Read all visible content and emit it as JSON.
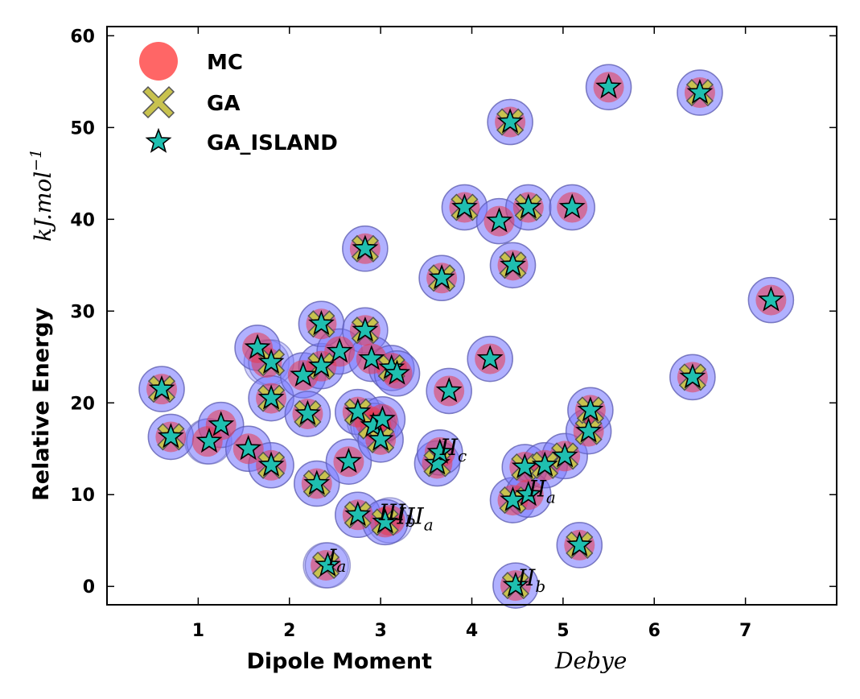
{
  "chart_data": {
    "type": "scatter",
    "xlabel": "Dipole Moment",
    "xunit": "Debye",
    "ylabel": "Relative Energy",
    "yunit": "kJ.mol",
    "yunit_sup": "−1",
    "xlim": [
      0,
      8
    ],
    "ylim": [
      -2,
      61
    ],
    "xticks": [
      1,
      2,
      3,
      4,
      5,
      6,
      7
    ],
    "yticks": [
      0,
      10,
      20,
      30,
      40,
      50,
      60
    ],
    "legend_position": "top-left",
    "colors": {
      "mc": "#e8384f",
      "ga": "#c8c24e",
      "ga_island": "#1fbfb0",
      "halo": "#8080ff"
    },
    "series": [
      {
        "name": "MC",
        "marker": "circle",
        "points": [
          [
            0.6,
            21.5
          ],
          [
            0.7,
            16.3
          ],
          [
            1.1,
            15.8
          ],
          [
            1.25,
            17.6
          ],
          [
            1.55,
            15.0
          ],
          [
            1.65,
            26.0
          ],
          [
            1.75,
            24.4
          ],
          [
            1.8,
            20.5
          ],
          [
            1.8,
            13.2
          ],
          [
            2.15,
            23.0
          ],
          [
            2.2,
            18.8
          ],
          [
            2.3,
            11.2
          ],
          [
            2.35,
            24.0
          ],
          [
            2.35,
            28.6
          ],
          [
            2.4,
            2.3
          ],
          [
            2.55,
            25.6
          ],
          [
            2.65,
            13.6
          ],
          [
            2.75,
            7.8
          ],
          [
            2.75,
            19.0
          ],
          [
            2.83,
            36.8
          ],
          [
            2.83,
            27.9
          ],
          [
            2.88,
            18.0
          ],
          [
            2.9,
            24.8
          ],
          [
            2.95,
            17.5
          ],
          [
            3.0,
            16.0
          ],
          [
            3.02,
            18.2
          ],
          [
            3.05,
            7.0
          ],
          [
            3.1,
            7.2
          ],
          [
            3.12,
            23.8
          ],
          [
            3.18,
            23.2
          ],
          [
            3.62,
            13.4
          ],
          [
            3.65,
            14.6
          ],
          [
            3.67,
            33.6
          ],
          [
            3.75,
            21.3
          ],
          [
            3.92,
            41.3
          ],
          [
            4.2,
            24.8
          ],
          [
            4.3,
            39.8
          ],
          [
            4.42,
            50.6
          ],
          [
            4.45,
            9.4
          ],
          [
            4.45,
            35.0
          ],
          [
            4.48,
            0.1
          ],
          [
            4.58,
            13.0
          ],
          [
            4.62,
            41.3
          ],
          [
            4.62,
            10.0
          ],
          [
            4.8,
            13.2
          ],
          [
            5.02,
            14.2
          ],
          [
            5.1,
            41.3
          ],
          [
            5.18,
            4.5
          ],
          [
            5.28,
            16.9
          ],
          [
            5.3,
            19.2
          ],
          [
            5.5,
            54.4
          ],
          [
            6.42,
            22.8
          ],
          [
            6.5,
            53.8
          ],
          [
            7.28,
            31.2
          ]
        ]
      },
      {
        "name": "GA",
        "marker": "x",
        "points": [
          [
            0.6,
            21.5
          ],
          [
            0.7,
            16.3
          ],
          [
            1.8,
            24.4
          ],
          [
            1.8,
            20.5
          ],
          [
            1.8,
            13.2
          ],
          [
            2.2,
            18.8
          ],
          [
            2.3,
            11.2
          ],
          [
            2.35,
            24.0
          ],
          [
            2.35,
            28.6
          ],
          [
            2.4,
            2.3
          ],
          [
            2.75,
            7.8
          ],
          [
            2.75,
            19.0
          ],
          [
            2.83,
            36.8
          ],
          [
            2.83,
            27.9
          ],
          [
            2.9,
            17.5
          ],
          [
            3.0,
            16.0
          ],
          [
            3.05,
            7.0
          ],
          [
            3.12,
            23.8
          ],
          [
            3.62,
            13.4
          ],
          [
            3.67,
            33.6
          ],
          [
            3.92,
            41.3
          ],
          [
            4.42,
            50.6
          ],
          [
            4.45,
            9.4
          ],
          [
            4.45,
            35.0
          ],
          [
            4.48,
            0.1
          ],
          [
            4.58,
            13.0
          ],
          [
            4.62,
            41.3
          ],
          [
            4.8,
            13.2
          ],
          [
            5.02,
            14.2
          ],
          [
            5.18,
            4.5
          ],
          [
            5.28,
            16.9
          ],
          [
            5.3,
            19.2
          ],
          [
            6.42,
            22.8
          ],
          [
            6.5,
            53.8
          ]
        ]
      },
      {
        "name": "GA_ISLAND",
        "marker": "star",
        "points": [
          [
            0.6,
            21.5
          ],
          [
            0.7,
            16.3
          ],
          [
            1.12,
            15.8
          ],
          [
            1.25,
            17.6
          ],
          [
            1.55,
            15.0
          ],
          [
            1.65,
            26.0
          ],
          [
            1.8,
            24.4
          ],
          [
            1.8,
            20.5
          ],
          [
            1.8,
            13.2
          ],
          [
            2.15,
            23.0
          ],
          [
            2.2,
            18.8
          ],
          [
            2.3,
            11.2
          ],
          [
            2.35,
            24.0
          ],
          [
            2.35,
            28.6
          ],
          [
            2.42,
            2.3
          ],
          [
            2.55,
            25.6
          ],
          [
            2.65,
            13.6
          ],
          [
            2.75,
            7.8
          ],
          [
            2.75,
            19.0
          ],
          [
            2.83,
            36.8
          ],
          [
            2.83,
            27.9
          ],
          [
            2.9,
            24.8
          ],
          [
            2.92,
            17.5
          ],
          [
            3.0,
            16.0
          ],
          [
            3.02,
            18.2
          ],
          [
            3.05,
            7.0
          ],
          [
            3.12,
            23.8
          ],
          [
            3.18,
            23.2
          ],
          [
            3.62,
            13.4
          ],
          [
            3.65,
            14.6
          ],
          [
            3.67,
            33.6
          ],
          [
            3.75,
            21.3
          ],
          [
            3.92,
            41.3
          ],
          [
            4.2,
            24.8
          ],
          [
            4.3,
            39.8
          ],
          [
            4.42,
            50.6
          ],
          [
            4.45,
            9.4
          ],
          [
            4.45,
            35.0
          ],
          [
            4.48,
            0.1
          ],
          [
            4.58,
            13.0
          ],
          [
            4.62,
            41.3
          ],
          [
            4.62,
            10.0
          ],
          [
            4.8,
            13.2
          ],
          [
            5.02,
            14.2
          ],
          [
            5.1,
            41.3
          ],
          [
            5.18,
            4.5
          ],
          [
            5.28,
            16.9
          ],
          [
            5.3,
            19.2
          ],
          [
            5.5,
            54.4
          ],
          [
            6.42,
            22.8
          ],
          [
            6.5,
            53.8
          ],
          [
            7.28,
            31.2
          ]
        ]
      }
    ],
    "annotations": [
      {
        "base": "I",
        "sub": "a",
        "x": 2.42,
        "y": 2.3
      },
      {
        "base": "II",
        "sub": "b",
        "x": 4.5,
        "y": 0.1
      },
      {
        "base": "III",
        "sub": "b",
        "x": 2.98,
        "y": 7.2
      },
      {
        "base": "III",
        "sub": "a",
        "x": 3.18,
        "y": 6.8
      },
      {
        "base": "II",
        "sub": "a",
        "x": 4.62,
        "y": 9.8
      },
      {
        "base": "II",
        "sub": "c",
        "x": 3.65,
        "y": 14.3
      }
    ]
  }
}
